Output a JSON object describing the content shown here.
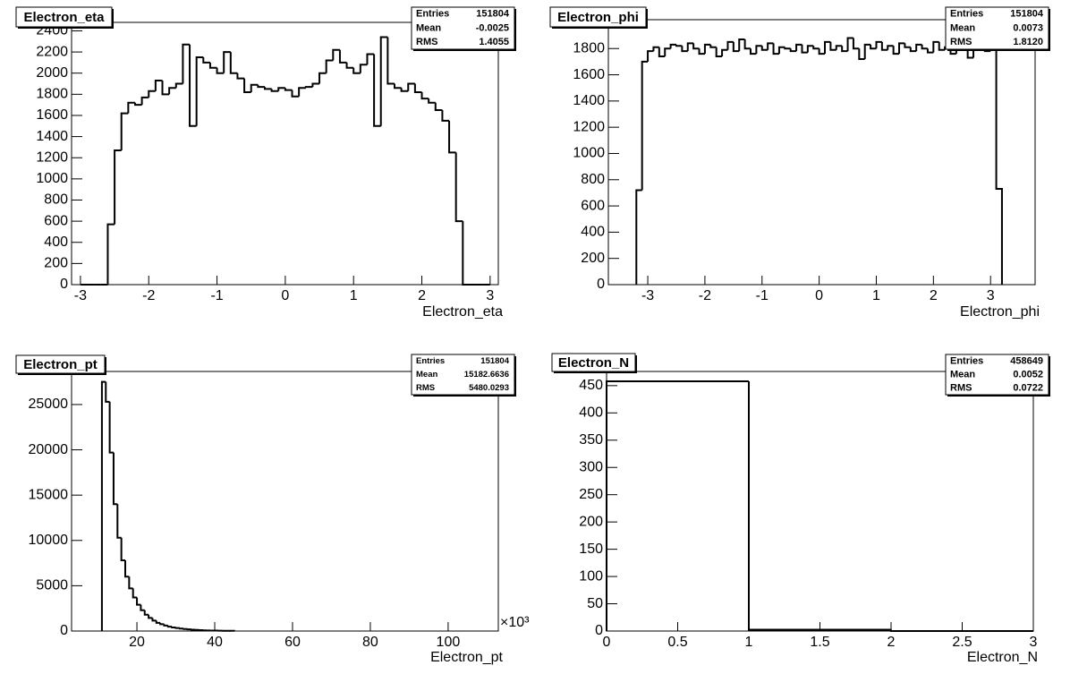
{
  "chart_data": [
    {
      "type": "histogram",
      "title": "Electron_eta",
      "x_label": "Electron_eta",
      "bins": [
        -3,
        -2.9,
        -2.8,
        -2.7,
        -2.6,
        -2.5,
        -2.4,
        -2.3,
        -2.2,
        -2.1,
        -2,
        -1.9,
        -1.8,
        -1.7,
        -1.6,
        -1.5,
        -1.4,
        -1.3,
        -1.2,
        -1.1,
        -1,
        -0.9,
        -0.8,
        -0.7,
        -0.6,
        -0.5,
        -0.4,
        -0.3,
        -0.2,
        -0.1,
        0,
        0.1,
        0.2,
        0.3,
        0.4,
        0.5,
        0.6,
        0.7,
        0.8,
        0.9,
        1,
        1.1,
        1.2,
        1.3,
        1.4,
        1.5,
        1.6,
        1.7,
        1.8,
        1.9,
        2,
        2.1,
        2.2,
        2.3,
        2.4,
        2.5,
        2.6,
        2.7,
        2.8,
        2.9,
        3
      ],
      "counts": [
        0,
        0,
        0,
        0,
        570,
        1270,
        1620,
        1720,
        1700,
        1770,
        1830,
        1930,
        1800,
        1860,
        1900,
        2270,
        1500,
        2150,
        2100,
        2050,
        2000,
        2200,
        2000,
        1950,
        1820,
        1890,
        1870,
        1850,
        1830,
        1860,
        1840,
        1780,
        1860,
        1870,
        1900,
        2000,
        2120,
        2220,
        2100,
        2050,
        2000,
        2080,
        2180,
        1500,
        2340,
        1900,
        1860,
        1830,
        1900,
        1820,
        1760,
        1720,
        1650,
        1550,
        1250,
        600,
        0,
        0,
        0,
        0
      ],
      "xlim": [
        -3.13,
        3.12
      ],
      "ylim": [
        0,
        2480
      ],
      "xticks": [
        -3,
        -2,
        -1,
        0,
        1,
        2,
        3
      ],
      "yticks": [
        0,
        200,
        400,
        600,
        800,
        1000,
        1200,
        1400,
        1600,
        1800,
        2000,
        2200,
        2400
      ],
      "stats": [
        {
          "label": "Entries",
          "value": "151804"
        },
        {
          "label": "Mean",
          "value": "-0.0025"
        },
        {
          "label": "RMS",
          "value": "1.4055"
        }
      ]
    },
    {
      "type": "histogram",
      "title": "Electron_phi",
      "x_label": "Electron_phi",
      "bins": [
        -3.2,
        -3.1,
        -3,
        -2.9,
        -2.8,
        -2.7,
        -2.6,
        -2.5,
        -2.4,
        -2.3,
        -2.2,
        -2.1,
        -2,
        -1.9,
        -1.8,
        -1.7,
        -1.6,
        -1.5,
        -1.4,
        -1.3,
        -1.2,
        -1.1,
        -1,
        -0.9,
        -0.8,
        -0.7,
        -0.6,
        -0.5,
        -0.4,
        -0.3,
        -0.2,
        -0.1,
        0,
        0.1,
        0.2,
        0.3,
        0.4,
        0.5,
        0.6,
        0.7,
        0.8,
        0.9,
        1,
        1.1,
        1.2,
        1.3,
        1.4,
        1.5,
        1.6,
        1.7,
        1.8,
        1.9,
        2,
        2.1,
        2.2,
        2.3,
        2.4,
        2.5,
        2.6,
        2.7,
        2.8,
        2.9,
        3,
        3.1,
        3.2
      ],
      "counts": [
        720,
        1700,
        1780,
        1810,
        1740,
        1800,
        1830,
        1820,
        1780,
        1840,
        1800,
        1760,
        1830,
        1810,
        1740,
        1790,
        1850,
        1780,
        1870,
        1800,
        1760,
        1820,
        1790,
        1840,
        1760,
        1810,
        1800,
        1780,
        1830,
        1770,
        1820,
        1800,
        1760,
        1850,
        1790,
        1820,
        1780,
        1880,
        1800,
        1720,
        1830,
        1800,
        1850,
        1790,
        1820,
        1760,
        1840,
        1810,
        1780,
        1830,
        1800,
        1770,
        1850,
        1790,
        1810,
        1760,
        1820,
        1790,
        1730,
        1840,
        1800,
        1780,
        1820,
        730
      ],
      "xlim": [
        -3.69,
        3.78
      ],
      "ylim": [
        0,
        2020
      ],
      "xticks": [
        -3,
        -2,
        -1,
        0,
        1,
        2,
        3
      ],
      "yticks": [
        0,
        200,
        400,
        600,
        800,
        1000,
        1200,
        1400,
        1600,
        1800
      ],
      "stats": [
        {
          "label": "Entries",
          "value": "151804"
        },
        {
          "label": "Mean",
          "value": "0.0073"
        },
        {
          "label": "RMS",
          "value": "1.8120"
        }
      ]
    },
    {
      "type": "histogram",
      "title": "Electron_pt",
      "x_label": "Electron_pt",
      "x_exponent": "×10³",
      "bins": [
        11,
        12,
        13,
        14,
        15,
        16,
        17,
        18,
        19,
        20,
        21,
        22,
        23,
        24,
        25,
        26,
        27,
        28,
        29,
        30,
        31,
        32,
        33,
        34,
        35,
        36,
        37,
        38,
        39,
        40,
        41,
        42,
        43,
        44,
        45
      ],
      "counts": [
        27500,
        25300,
        19700,
        14000,
        10300,
        7800,
        6000,
        4700,
        3700,
        2900,
        2300,
        1800,
        1450,
        1150,
        900,
        750,
        600,
        480,
        400,
        330,
        270,
        220,
        180,
        150,
        120,
        100,
        80,
        65,
        55,
        45,
        38,
        30,
        25,
        20
      ],
      "xlim": [
        3.2,
        112.9
      ],
      "ylim": [
        0,
        28650
      ],
      "xticks": [
        20,
        40,
        60,
        80,
        100
      ],
      "yticks": [
        0,
        5000,
        10000,
        15000,
        20000,
        25000
      ],
      "stats": [
        {
          "label": "Entries",
          "value": "151804"
        },
        {
          "label": "Mean",
          "value": "15182.6636"
        },
        {
          "label": "RMS",
          "value": "5480.0293"
        }
      ]
    },
    {
      "type": "histogram",
      "title": "Electron_N",
      "x_label": "Electron_N",
      "bins": [
        0,
        1,
        2,
        3
      ],
      "counts": [
        458,
        2.4,
        0
      ],
      "xlim": [
        0,
        3
      ],
      "ylim": [
        0,
        476
      ],
      "xticks": [
        0,
        0.5,
        1,
        1.5,
        2,
        2.5,
        3
      ],
      "yticks": [
        0,
        50,
        100,
        150,
        200,
        250,
        300,
        350,
        400,
        450
      ],
      "stats": [
        {
          "label": "Entries",
          "value": "458649"
        },
        {
          "label": "Mean",
          "value": "0.0052"
        },
        {
          "label": "RMS",
          "value": "0.0722"
        }
      ]
    }
  ]
}
